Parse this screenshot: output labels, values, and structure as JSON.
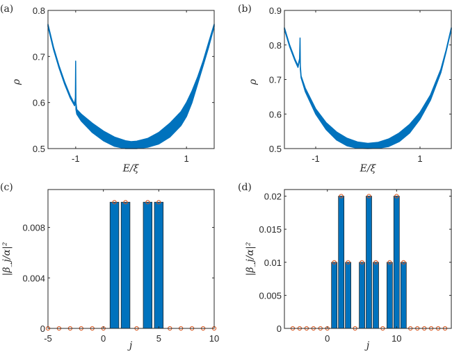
{
  "chart_data": [
    {
      "id": "a",
      "type": "area",
      "panel_label": "(a)",
      "xlabel": "E/ξ",
      "ylabel": "ρ",
      "xlim": [
        -1.5,
        1.5
      ],
      "ylim": [
        0.5,
        0.8
      ],
      "xticks": [
        -1,
        1
      ],
      "xtick_labels": [
        "-1",
        "1"
      ],
      "yticks": [
        0.5,
        0.6,
        0.7,
        0.8
      ],
      "ytick_labels": [
        "0.5",
        "0.6",
        "0.7",
        "0.8"
      ],
      "series_color": "#0072BD",
      "description": "Band of rho vs E/xi: thin line decreasing from 0.77 at E=-1.5 to ~0.597 at E=-1.01, sharp spike to 0.69 at E=-1, then a broadening band with minimum ~0.50-0.515 near E=0, rising to 0.77 at E=1.5",
      "upper": {
        "x": [
          -1.5,
          -1.4,
          -1.3,
          -1.2,
          -1.1,
          -1.02,
          -1.005,
          -1.0,
          -0.995,
          -0.98,
          -0.9,
          -0.7,
          -0.5,
          -0.3,
          -0.1,
          0.0,
          0.1,
          0.3,
          0.5,
          0.7,
          0.9,
          1.0,
          1.1,
          1.2,
          1.3,
          1.4,
          1.5
        ],
        "y": [
          0.77,
          0.72,
          0.68,
          0.645,
          0.615,
          0.597,
          0.61,
          0.69,
          0.6,
          0.585,
          0.575,
          0.555,
          0.538,
          0.525,
          0.517,
          0.515,
          0.516,
          0.522,
          0.535,
          0.555,
          0.58,
          0.6,
          0.625,
          0.655,
          0.69,
          0.73,
          0.77
        ]
      },
      "lower": {
        "x": [
          -1.5,
          -1.4,
          -1.3,
          -1.2,
          -1.1,
          -1.02,
          -1.005,
          -1.0,
          -0.995,
          -0.98,
          -0.9,
          -0.7,
          -0.5,
          -0.3,
          -0.1,
          0.0,
          0.1,
          0.3,
          0.5,
          0.7,
          0.9,
          1.0,
          1.1,
          1.2,
          1.3,
          1.4,
          1.5
        ],
        "y": [
          0.765,
          0.715,
          0.675,
          0.64,
          0.61,
          0.593,
          0.6,
          0.68,
          0.585,
          0.575,
          0.56,
          0.535,
          0.517,
          0.505,
          0.5,
          0.5,
          0.5,
          0.503,
          0.51,
          0.525,
          0.55,
          0.57,
          0.6,
          0.64,
          0.68,
          0.72,
          0.765
        ]
      }
    },
    {
      "id": "b",
      "type": "area",
      "panel_label": "(b)",
      "xlabel": "E/ξ",
      "ylabel": "ρ",
      "xlim": [
        -1.6,
        1.6
      ],
      "ylim": [
        0.5,
        0.9
      ],
      "xticks": [
        -1,
        1
      ],
      "xtick_labels": [
        "-1",
        "1"
      ],
      "yticks": [
        0.5,
        0.6,
        0.7,
        0.8,
        0.9
      ],
      "ytick_labels": [
        "0.5",
        "0.6",
        "0.7",
        "0.8",
        "0.9"
      ],
      "series_color": "#0072BD",
      "description": "Band of rho vs E/xi: starts 0.85 at E=-1.6, dips to 0.74 near E=-1.33, spike to 0.82 at E=-1.3, then broadening U-shaped band with minimum ~0.50-0.515 near E=0, rising to 0.85 at E=1.6",
      "upper": {
        "x": [
          -1.6,
          -1.5,
          -1.4,
          -1.34,
          -1.31,
          -1.3,
          -1.295,
          -1.28,
          -1.2,
          -1.0,
          -0.8,
          -0.6,
          -0.4,
          -0.2,
          0.0,
          0.2,
          0.4,
          0.6,
          0.8,
          1.0,
          1.2,
          1.4,
          1.5,
          1.6
        ],
        "y": [
          0.85,
          0.8,
          0.76,
          0.74,
          0.76,
          0.82,
          0.74,
          0.71,
          0.675,
          0.615,
          0.575,
          0.548,
          0.53,
          0.519,
          0.515,
          0.518,
          0.528,
          0.545,
          0.57,
          0.605,
          0.655,
          0.73,
          0.785,
          0.85
        ]
      },
      "lower": {
        "x": [
          -1.6,
          -1.5,
          -1.4,
          -1.34,
          -1.31,
          -1.3,
          -1.295,
          -1.28,
          -1.2,
          -1.0,
          -0.8,
          -0.6,
          -0.4,
          -0.2,
          0.0,
          0.2,
          0.4,
          0.6,
          0.8,
          1.0,
          1.2,
          1.4,
          1.5,
          1.6
        ],
        "y": [
          0.845,
          0.795,
          0.755,
          0.735,
          0.755,
          0.81,
          0.73,
          0.705,
          0.665,
          0.6,
          0.555,
          0.525,
          0.508,
          0.501,
          0.5,
          0.501,
          0.506,
          0.52,
          0.545,
          0.585,
          0.64,
          0.72,
          0.78,
          0.845
        ]
      }
    },
    {
      "id": "c",
      "type": "bar",
      "panel_label": "(c)",
      "xlabel": "j",
      "ylabel": "|β_j/α|²",
      "xlim": [
        -5,
        10
      ],
      "ylim": [
        0,
        0.011
      ],
      "xticks": [
        -5,
        0,
        5,
        10
      ],
      "xtick_labels": [
        "-5",
        "0",
        "5",
        "10"
      ],
      "yticks": [
        0,
        0.004,
        0.008
      ],
      "ytick_labels": [
        "0",
        "0.004",
        "0.008"
      ],
      "bar_color": "#0072BD",
      "marker_color": "#D95319",
      "x": [
        -5,
        -4,
        -3,
        -2,
        -1,
        0,
        1,
        2,
        3,
        4,
        5,
        6,
        7,
        8,
        9,
        10
      ],
      "bars": [
        0,
        0,
        0,
        0,
        0,
        0,
        0.01,
        0.01,
        0,
        0.01,
        0.01,
        0,
        0,
        0,
        0,
        0
      ],
      "markers": [
        0,
        0,
        0,
        0,
        0,
        0,
        0.01,
        0.01,
        0,
        0.01,
        0.01,
        0,
        0,
        0,
        0,
        0
      ]
    },
    {
      "id": "d",
      "type": "bar",
      "panel_label": "(d)",
      "xlabel": "j",
      "ylabel": "|β_j/α|²",
      "xlim": [
        -6.2,
        17.9
      ],
      "ylim": [
        0,
        0.021
      ],
      "xticks": [
        0,
        10
      ],
      "xtick_labels": [
        "0",
        "10"
      ],
      "yticks": [
        0,
        0.005,
        0.01,
        0.015,
        0.02
      ],
      "ytick_labels": [
        "0",
        "0.005",
        "0.01",
        "0.015",
        "0.02"
      ],
      "bar_color": "#0072BD",
      "marker_color": "#D95319",
      "x": [
        -5,
        -4,
        -3,
        -2,
        -1,
        0,
        1,
        2,
        3,
        4,
        5,
        6,
        7,
        8,
        9,
        10,
        11,
        12,
        13,
        14,
        15,
        16,
        17
      ],
      "bars": [
        0,
        0,
        0,
        0,
        0,
        0,
        0.01,
        0.02,
        0.01,
        0,
        0.01,
        0.02,
        0.01,
        0,
        0.01,
        0.02,
        0.01,
        0,
        0,
        0,
        0,
        0,
        0
      ],
      "markers": [
        0,
        0,
        0,
        0,
        0,
        0,
        0.01,
        0.02,
        0.01,
        0,
        0.01,
        0.02,
        0.01,
        0,
        0.01,
        0.02,
        0.01,
        0,
        0,
        0,
        0,
        0,
        0
      ]
    }
  ]
}
